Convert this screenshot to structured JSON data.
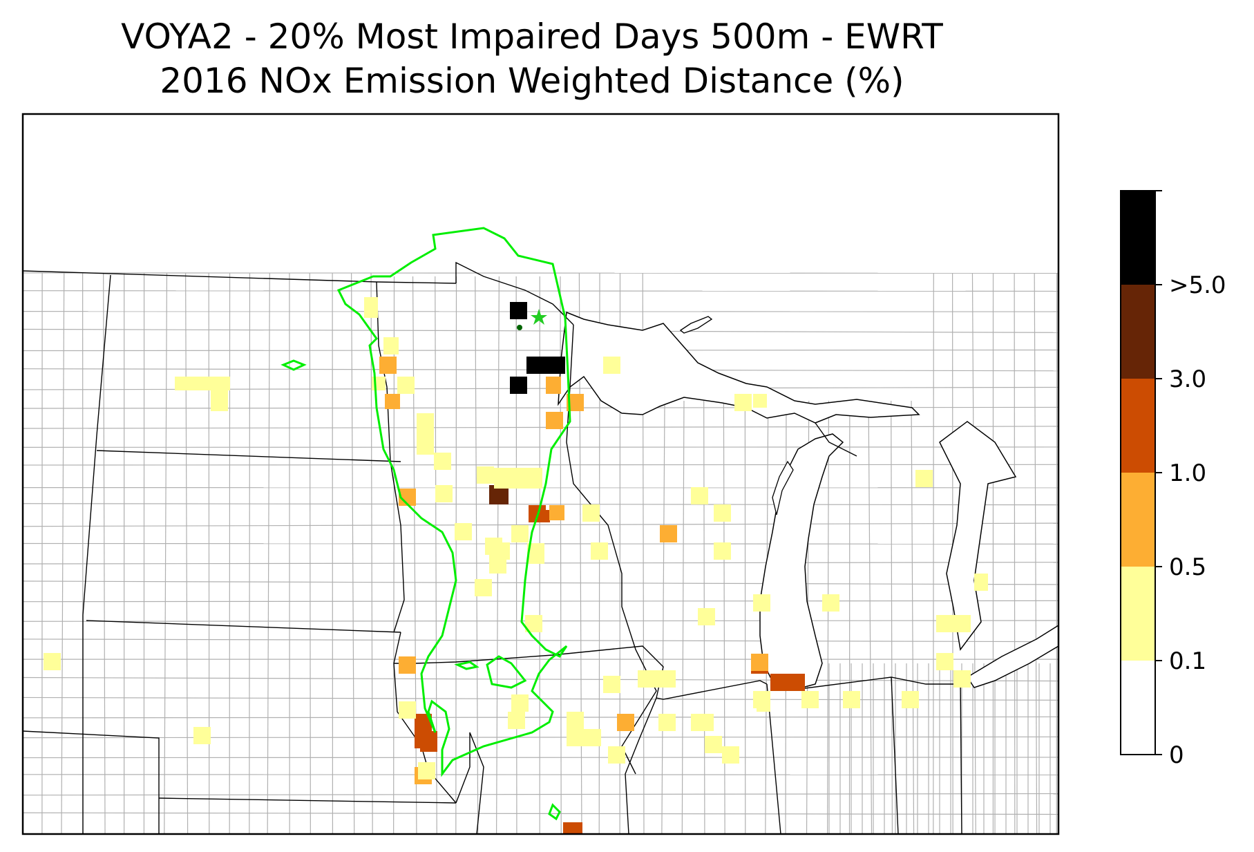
{
  "title": {
    "line1": "VOYA2 - 20% Most Impaired Days 500m - EWRT",
    "line2": "2016 NOx Emission Weighted Distance (%)"
  },
  "colorbar": {
    "labels": [
      "0",
      "0.1",
      "0.5",
      "1.0",
      "3.0",
      ">5.0"
    ],
    "colors": [
      "#ffffff",
      "#ffff99",
      "#fdae33",
      "#cc4c02",
      "#662506",
      "#000000"
    ],
    "bins": [
      {
        "range": "0-0.1",
        "color": "#ffffff"
      },
      {
        "range": "0.1-0.5",
        "color": "#ffff99"
      },
      {
        "range": "0.5-1.0",
        "color": "#fdae33"
      },
      {
        "range": "1.0-3.0",
        "color": "#cc4c02"
      },
      {
        "range": "3.0-5.0",
        "color": "#662506"
      },
      {
        "range": ">5.0",
        "color": "#000000"
      }
    ]
  },
  "map": {
    "region": "Upper Midwest United States",
    "contour_color": "#00ee00",
    "site_marker": "star",
    "site_marker_color": "#22cc22",
    "state_border_color": "#000000",
    "county_border_color": "#a8a8a8"
  }
}
